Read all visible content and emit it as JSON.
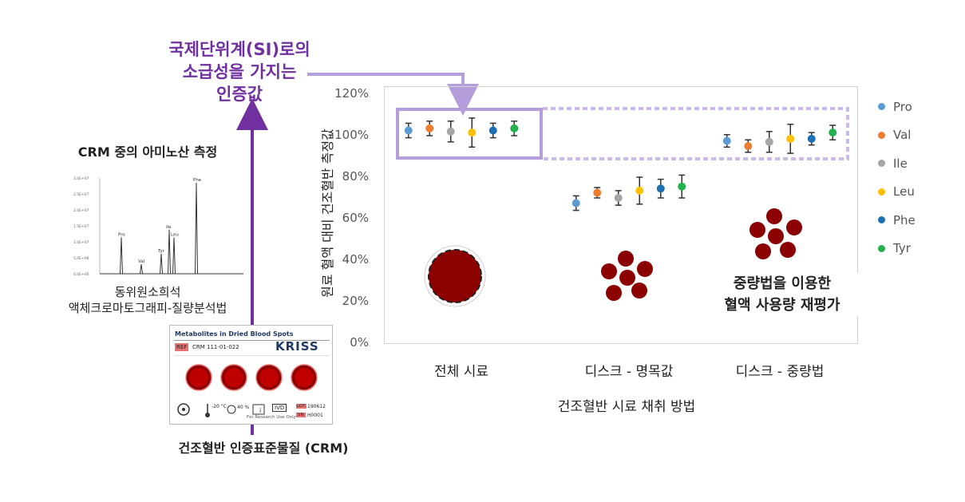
{
  "annotations": {
    "si_traceability": "국제단위계(SI)로의\n소급성을 가지는\n인증값",
    "crm_measure_title": "CRM 중의 아미노산 측정",
    "method_caption": "동위원소희석\n액체크로마토그래피-질량분석법",
    "crm_label": "건조혈반 인증표준물질 (CRM)",
    "reevaluation_note": "중량법을 이용한\n혈액 사용량 재평가"
  },
  "chromatogram": {
    "peaks": [
      {
        "label": "Pro",
        "height": 0.38
      },
      {
        "label": "Val",
        "height": 0.1
      },
      {
        "label": "Tyr",
        "height": 0.21
      },
      {
        "label": "Ile",
        "height": 0.46
      },
      {
        "label": "Leu",
        "height": 0.38
      },
      {
        "label": "Phe",
        "height": 0.95
      }
    ],
    "yticks": [
      "3.0E+07",
      "2.5E+07",
      "2.0E+07",
      "1.5E+07",
      "1.0E+07",
      "5.0E+06",
      "0.0E+00"
    ]
  },
  "card": {
    "title": "Metabolites in Dried Blood Spots",
    "ref_tag": "REF",
    "ref_code": "CRM 111-01-022",
    "brand": "KRISS",
    "temp": "-20 °C",
    "humidity": "40 %",
    "ivd": "IVD",
    "research_use": "For Research Use Only",
    "lot_tag": "LOT",
    "lot_value": "190612",
    "sn_tag": "SN",
    "sn_value": "H0001"
  },
  "colors": {
    "accent_purple": "#7030a0",
    "box_purple": "#b39ddb",
    "blood_red": "#8b0000"
  },
  "chart_data": {
    "type": "scatter",
    "xlabel": "건조혈반 시료 채취 방법",
    "ylabel": "원료 혈액 대비 건조혈반 측정값",
    "categories": [
      "전체 시료",
      "디스크 - 명목값",
      "디스크 - 중량법"
    ],
    "ylim": [
      0,
      120
    ],
    "yticks": [
      "0%",
      "20%",
      "40%",
      "60%",
      "80%",
      "100%",
      "120%"
    ],
    "legend_position": "right",
    "series": [
      {
        "name": "Pro",
        "color": "#5b9bd5",
        "values": [
          102.5,
          67.5,
          97.5
        ],
        "errors": [
          3.5,
          3.5,
          3.0
        ]
      },
      {
        "name": "Val",
        "color": "#ed7d31",
        "values": [
          103.5,
          72.5,
          95.0
        ],
        "errors": [
          3.5,
          2.5,
          3.0
        ]
      },
      {
        "name": "Ile",
        "color": "#a5a5a5",
        "values": [
          102.0,
          70.0,
          97.0
        ],
        "errors": [
          5.0,
          3.5,
          5.0
        ]
      },
      {
        "name": "Leu",
        "color": "#ffc000",
        "values": [
          101.5,
          73.5,
          98.5
        ],
        "errors": [
          7.0,
          6.5,
          7.0
        ]
      },
      {
        "name": "Phe",
        "color": "#1f6fb4",
        "values": [
          102.5,
          74.5,
          98.5
        ],
        "errors": [
          3.5,
          4.5,
          3.0
        ]
      },
      {
        "name": "Tyr",
        "color": "#22b14c",
        "values": [
          103.5,
          75.5,
          101.5
        ],
        "errors": [
          3.5,
          5.5,
          3.5
        ]
      }
    ]
  }
}
